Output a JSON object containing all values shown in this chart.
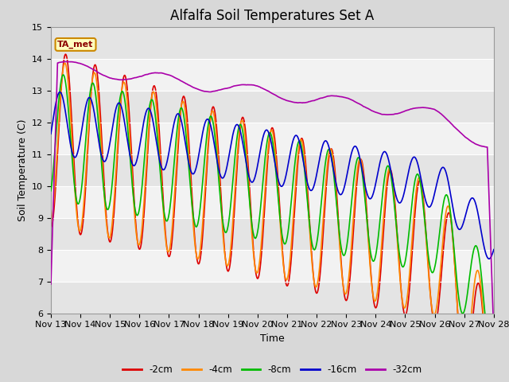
{
  "title": "Alfalfa Soil Temperatures Set A",
  "ylabel": "Soil Temperature (C)",
  "xlabel": "Time",
  "annotation": "TA_met",
  "ylim": [
    6.0,
    15.0
  ],
  "yticks": [
    6.0,
    7.0,
    8.0,
    9.0,
    10.0,
    11.0,
    12.0,
    13.0,
    14.0,
    15.0
  ],
  "xtick_labels": [
    "Nov 13",
    "Nov 14",
    "Nov 15",
    "Nov 16",
    "Nov 17",
    "Nov 18",
    "Nov 19",
    "Nov 20",
    "Nov 21",
    "Nov 22",
    "Nov 23",
    "Nov 24",
    "Nov 25",
    "Nov 26",
    "Nov 27",
    "Nov 28"
  ],
  "colors": {
    "-2cm": "#dd0000",
    "-4cm": "#ff8800",
    "-8cm": "#00bb00",
    "-16cm": "#0000cc",
    "-32cm": "#aa00aa"
  },
  "legend_labels": [
    "-2cm",
    "-4cm",
    "-8cm",
    "-16cm",
    "-32cm"
  ],
  "bg_color": "#d8d8d8",
  "plot_bg_color": "#f2f2f2",
  "band_color": "#e4e4e4",
  "title_fontsize": 12,
  "label_fontsize": 9,
  "tick_fontsize": 8
}
